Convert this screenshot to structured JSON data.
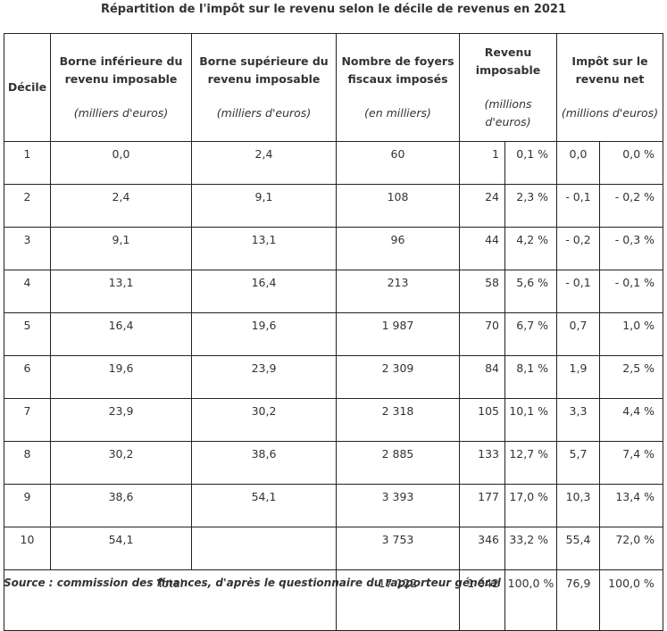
{
  "title": "Répartition de l'impôt sur le revenu selon le décile de revenus en 2021",
  "headers": {
    "decile": "Décile",
    "borne_inf": "Borne inférieure du revenu imposable",
    "borne_inf_unit": "(milliers d'euros)",
    "borne_sup": "Borne supérieure du revenu imposable",
    "borne_sup_unit": "(milliers d'euros)",
    "foyers": "Nombre de foyers fiscaux imposés",
    "foyers_unit": "(en milliers)",
    "revenu": "Revenu imposable",
    "revenu_unit": "(millions d'euros)",
    "impot": "Impôt sur le revenu net",
    "impot_unit": "(millions d'euros)"
  },
  "rows": [
    {
      "decile": "1",
      "borne_inf": "0,0",
      "borne_sup": "2,4",
      "foyers": "60",
      "revenu": "1",
      "revenu_pct": "0,1 %",
      "impot": "0,0",
      "impot_pct": "0,0 %"
    },
    {
      "decile": "2",
      "borne_inf": "2,4",
      "borne_sup": "9,1",
      "foyers": "108",
      "revenu": "24",
      "revenu_pct": "2,3 %",
      "impot": "- 0,1",
      "impot_pct": "- 0,2 %"
    },
    {
      "decile": "3",
      "borne_inf": "9,1",
      "borne_sup": "13,1",
      "foyers": "96",
      "revenu": "44",
      "revenu_pct": "4,2 %",
      "impot": "- 0,2",
      "impot_pct": "- 0,3 %"
    },
    {
      "decile": "4",
      "borne_inf": "13,1",
      "borne_sup": "16,4",
      "foyers": "213",
      "revenu": "58",
      "revenu_pct": "5,6 %",
      "impot": "- 0,1",
      "impot_pct": "- 0,1 %"
    },
    {
      "decile": "5",
      "borne_inf": "16,4",
      "borne_sup": "19,6",
      "foyers": "1 987",
      "revenu": "70",
      "revenu_pct": "6,7 %",
      "impot": "0,7",
      "impot_pct": "1,0 %"
    },
    {
      "decile": "6",
      "borne_inf": "19,6",
      "borne_sup": "23,9",
      "foyers": "2 309",
      "revenu": "84",
      "revenu_pct": "8,1 %",
      "impot": "1,9",
      "impot_pct": "2,5 %"
    },
    {
      "decile": "7",
      "borne_inf": "23,9",
      "borne_sup": "30,2",
      "foyers": "2 318",
      "revenu": "105",
      "revenu_pct": "10,1 %",
      "impot": "3,3",
      "impot_pct": "4,4 %"
    },
    {
      "decile": "8",
      "borne_inf": "30,2",
      "borne_sup": "38,6",
      "foyers": "2 885",
      "revenu": "133",
      "revenu_pct": "12,7 %",
      "impot": "5,7",
      "impot_pct": "7,4 %"
    },
    {
      "decile": "9",
      "borne_inf": "38,6",
      "borne_sup": "54,1",
      "foyers": "3 393",
      "revenu": "177",
      "revenu_pct": "17,0 %",
      "impot": "10,3",
      "impot_pct": "13,4 %"
    },
    {
      "decile": "10",
      "borne_inf": "54,1",
      "borne_sup": "",
      "foyers": "3 753",
      "revenu": "346",
      "revenu_pct": "33,2 %",
      "impot": "55,4",
      "impot_pct": "72,0 %"
    }
  ],
  "total": {
    "label": "Total",
    "foyers": "17 122",
    "revenu": "1 042",
    "revenu_pct": "100,0 %",
    "impot": "76,9",
    "impot_pct": "100,0 %"
  },
  "source": "Source : commission des finances, d'après le questionnaire du rapporteur général"
}
